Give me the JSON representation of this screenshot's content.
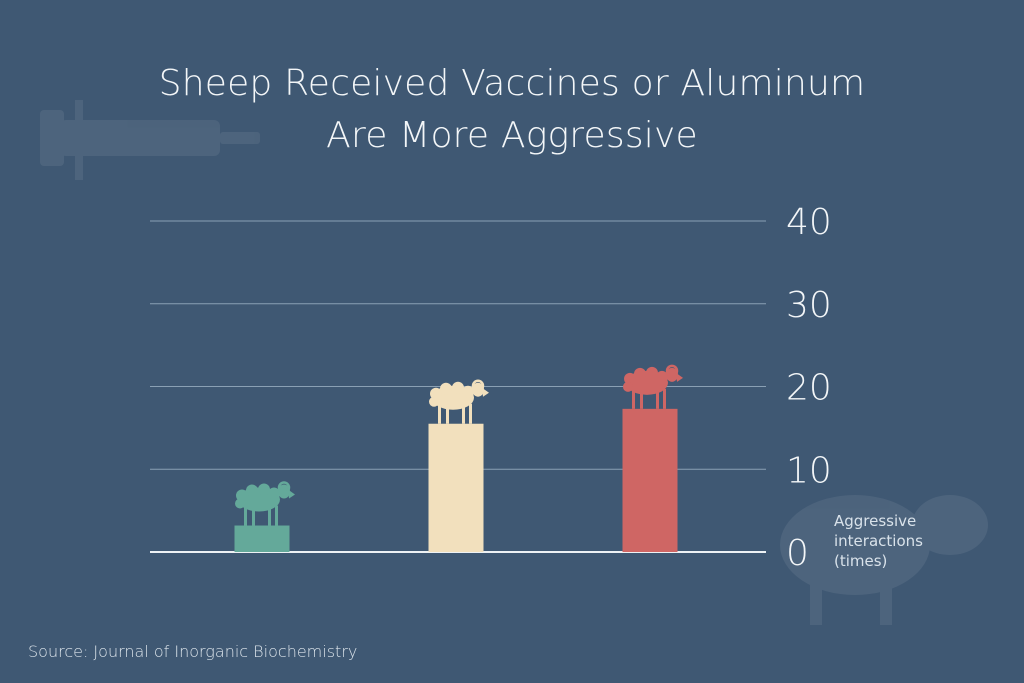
{
  "chart_data": {
    "type": "bar",
    "title_lines": [
      "Sheep Received Vaccines or Aluminum",
      "Are More Aggressive"
    ],
    "categories": [
      "",
      "",
      ""
    ],
    "values": [
      3.2,
      15.5,
      17.3
    ],
    "colors": [
      "#64a99a",
      "#f2e0bd",
      "#cf6664"
    ],
    "ylabel_lines": [
      "Aggressive",
      "interactions",
      "(times)"
    ],
    "ylim": [
      0,
      40
    ],
    "yticks": [
      "0",
      "10",
      "20",
      "30",
      "40"
    ],
    "grid": true,
    "source": "Source: Journal of Inorganic Biochemistry"
  },
  "colors": {
    "background": "#3f5873",
    "gridline": "#8aa0b4",
    "baseline": "#eef2f5"
  }
}
